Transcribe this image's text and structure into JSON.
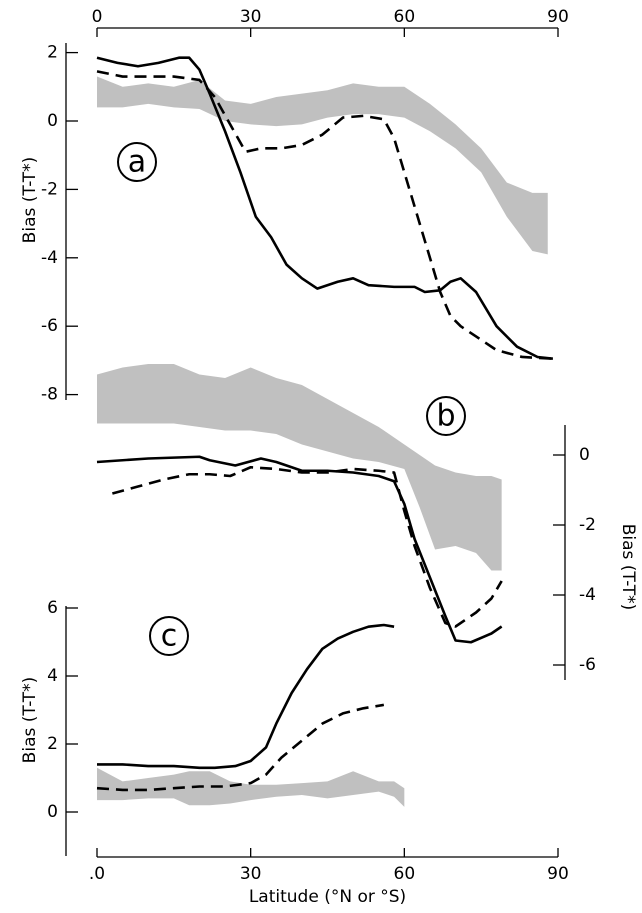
{
  "chart_data": [
    {
      "type": "line",
      "panel_label": "a",
      "ylabel": "Bias (T-T*)",
      "yaxis_side": "left",
      "xlim": [
        0,
        90
      ],
      "xticks": [
        0,
        30,
        60,
        90
      ],
      "xaxis_side": "top",
      "ylim": [
        -8,
        2
      ],
      "yticks": [
        -8,
        -6,
        -4,
        -2,
        0,
        2
      ],
      "band": {
        "color": "#c0c0c0",
        "x": [
          0,
          5,
          10,
          15,
          20,
          25,
          30,
          35,
          40,
          45,
          50,
          55,
          60,
          65,
          70,
          75,
          80,
          85,
          88
        ],
        "low": [
          0.4,
          0.4,
          0.5,
          0.4,
          0.35,
          0.0,
          -0.1,
          -0.15,
          -0.1,
          0.1,
          0.2,
          0.2,
          0.1,
          -0.3,
          -0.8,
          -1.5,
          -2.8,
          -3.8,
          -3.9
        ],
        "high": [
          1.3,
          1.0,
          1.1,
          1.0,
          1.2,
          0.6,
          0.5,
          0.7,
          0.8,
          0.9,
          1.1,
          1.0,
          1.0,
          0.5,
          -0.1,
          -0.8,
          -1.8,
          -2.1,
          -2.1
        ]
      },
      "series": [
        {
          "style": "solid",
          "color": "#000000",
          "x": [
            0,
            4,
            8,
            12,
            16,
            18,
            20,
            22,
            25,
            28,
            31,
            34,
            37,
            40,
            43,
            47,
            50,
            53,
            58,
            62,
            64,
            67,
            69,
            71,
            74,
            78,
            82,
            86,
            89
          ],
          "values": [
            1.85,
            1.7,
            1.6,
            1.7,
            1.85,
            1.85,
            1.5,
            0.8,
            -0.3,
            -1.5,
            -2.8,
            -3.4,
            -4.2,
            -4.6,
            -4.9,
            -4.7,
            -4.6,
            -4.8,
            -4.85,
            -4.85,
            -5.0,
            -4.95,
            -4.7,
            -4.6,
            -5.0,
            -6.0,
            -6.6,
            -6.9,
            -6.95
          ]
        },
        {
          "style": "dashed",
          "color": "#000000",
          "x": [
            0,
            5,
            10,
            15,
            20,
            23,
            26,
            29,
            32,
            36,
            40,
            44,
            48,
            52,
            56,
            58,
            61,
            64,
            67,
            69,
            71,
            74,
            78,
            83,
            89
          ],
          "values": [
            1.45,
            1.3,
            1.3,
            1.3,
            1.2,
            0.7,
            -0.1,
            -0.9,
            -0.8,
            -0.8,
            -0.7,
            -0.4,
            0.1,
            0.15,
            0.05,
            -0.5,
            -2.0,
            -3.5,
            -5.0,
            -5.7,
            -6.0,
            -6.3,
            -6.7,
            -6.9,
            -6.95
          ]
        }
      ]
    },
    {
      "type": "line",
      "panel_label": "b",
      "ylabel": "Bias (T-T*)",
      "yaxis_side": "right",
      "xlim": [
        0,
        90
      ],
      "ylim": [
        -6,
        3
      ],
      "yticks": [
        -6,
        -4,
        -2,
        0
      ],
      "band": {
        "color": "#c0c0c0",
        "x": [
          0,
          5,
          10,
          15,
          20,
          25,
          30,
          35,
          40,
          45,
          50,
          55,
          60,
          63,
          66,
          70,
          74,
          77,
          79
        ],
        "low": [
          0.9,
          0.9,
          0.9,
          0.9,
          0.8,
          0.7,
          0.7,
          0.6,
          0.3,
          0.1,
          -0.1,
          -0.2,
          -0.4,
          -1.5,
          -2.7,
          -2.6,
          -2.8,
          -3.3,
          -3.3
        ],
        "high": [
          2.3,
          2.5,
          2.6,
          2.6,
          2.3,
          2.2,
          2.5,
          2.2,
          2.0,
          1.6,
          1.2,
          0.8,
          0.3,
          0.0,
          -0.3,
          -0.5,
          -0.6,
          -0.6,
          -0.7
        ]
      },
      "series": [
        {
          "style": "solid",
          "color": "#000000",
          "x": [
            0,
            10,
            20,
            22,
            27,
            32,
            35,
            40,
            45,
            50,
            55,
            58,
            60,
            62,
            65,
            68,
            70,
            73,
            77,
            79
          ],
          "values": [
            -0.2,
            -0.1,
            -0.05,
            -0.15,
            -0.3,
            -0.1,
            -0.2,
            -0.45,
            -0.45,
            -0.5,
            -0.6,
            -0.75,
            -1.4,
            -2.4,
            -3.5,
            -4.6,
            -5.3,
            -5.35,
            -5.1,
            -4.9
          ]
        },
        {
          "style": "dashed",
          "color": "#000000",
          "x": [
            3,
            8,
            13,
            18,
            22,
            26,
            30,
            35,
            40,
            45,
            50,
            55,
            58,
            60,
            62,
            65,
            68,
            70,
            74,
            77,
            79
          ],
          "values": [
            -1.1,
            -0.9,
            -0.7,
            -0.55,
            -0.55,
            -0.6,
            -0.35,
            -0.4,
            -0.5,
            -0.5,
            -0.4,
            -0.45,
            -0.5,
            -1.6,
            -2.6,
            -3.8,
            -4.8,
            -4.9,
            -4.5,
            -4.1,
            -3.6
          ]
        }
      ]
    },
    {
      "type": "line",
      "panel_label": "c",
      "ylabel": "Bias (T-T*)",
      "yaxis_side": "left",
      "xlabel": "Latitude (°N or °S)",
      "xaxis_side": "bottom",
      "xlim": [
        0,
        90
      ],
      "xticks": [
        {
          "value": 0,
          "label": ".0"
        },
        30,
        60,
        90
      ],
      "ylim": [
        -1.2,
        6
      ],
      "yticks": [
        0,
        2,
        4,
        6
      ],
      "band": {
        "color": "#c0c0c0",
        "x": [
          0,
          5,
          10,
          15,
          18,
          22,
          26,
          30,
          35,
          40,
          45,
          50,
          55,
          58,
          60
        ],
        "low": [
          0.35,
          0.35,
          0.4,
          0.4,
          0.2,
          0.2,
          0.25,
          0.35,
          0.45,
          0.5,
          0.4,
          0.5,
          0.6,
          0.45,
          0.15
        ],
        "high": [
          1.3,
          0.9,
          1.0,
          1.1,
          1.2,
          1.2,
          0.9,
          0.8,
          0.8,
          0.85,
          0.9,
          1.2,
          0.9,
          0.9,
          0.7
        ]
      },
      "series": [
        {
          "style": "solid",
          "color": "#000000",
          "x": [
            0,
            5,
            10,
            15,
            20,
            23,
            27,
            30,
            33,
            35,
            38,
            41,
            44,
            47,
            50,
            53,
            56,
            58
          ],
          "values": [
            1.4,
            1.4,
            1.35,
            1.35,
            1.3,
            1.3,
            1.35,
            1.5,
            1.9,
            2.6,
            3.5,
            4.2,
            4.8,
            5.1,
            5.3,
            5.45,
            5.5,
            5.45
          ]
        },
        {
          "style": "dashed",
          "color": "#000000",
          "x": [
            0,
            5,
            10,
            15,
            20,
            25,
            30,
            33,
            36,
            40,
            44,
            48,
            52,
            56
          ],
          "values": [
            0.7,
            0.65,
            0.65,
            0.7,
            0.75,
            0.75,
            0.85,
            1.1,
            1.6,
            2.1,
            2.6,
            2.9,
            3.05,
            3.15
          ]
        }
      ]
    }
  ]
}
